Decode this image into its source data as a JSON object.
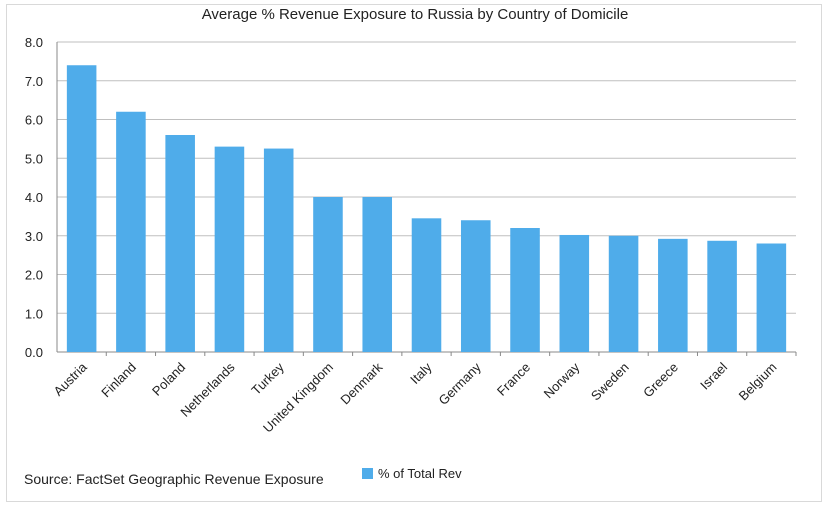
{
  "title": "Average % Revenue Exposure to Russia by Country of Domicile",
  "source": "Source: FactSet Geographic Revenue Exposure",
  "colors": {
    "bar": "#4facea",
    "grid": "#bfbfbf",
    "axis": "#888888",
    "text": "#222222"
  },
  "chart_data": {
    "type": "bar",
    "title": "Average % Revenue Exposure to Russia by Country of Domicile",
    "categories": [
      "Austria",
      "Finland",
      "Poland",
      "Netherlands",
      "Turkey",
      "United Kingdom",
      "Denmark",
      "Italy",
      "Germany",
      "France",
      "Norway",
      "Sweden",
      "Greece",
      "Israel",
      "Belgium"
    ],
    "series": [
      {
        "name": "% of Total Rev",
        "values": [
          7.4,
          6.2,
          5.6,
          5.3,
          5.25,
          4.0,
          4.0,
          3.45,
          3.4,
          3.2,
          3.02,
          3.0,
          2.92,
          2.87,
          2.8
        ]
      }
    ],
    "yticks": [
      "0.0",
      "1.0",
      "2.0",
      "3.0",
      "4.0",
      "5.0",
      "6.0",
      "7.0",
      "8.0"
    ],
    "ylim": [
      0,
      8
    ],
    "grid": true,
    "legend": "bottom"
  }
}
